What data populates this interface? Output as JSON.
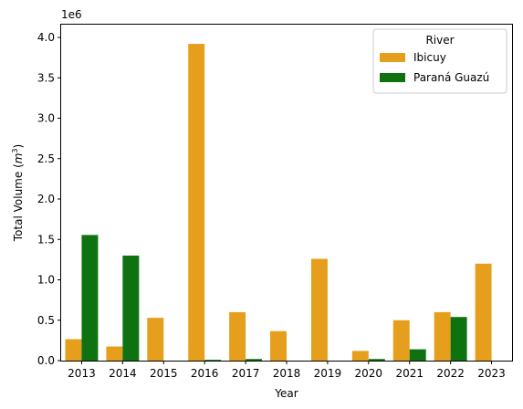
{
  "chart_data": {
    "type": "bar",
    "categories": [
      "2013",
      "2014",
      "2015",
      "2016",
      "2017",
      "2018",
      "2019",
      "2020",
      "2021",
      "2022",
      "2023"
    ],
    "series": [
      {
        "name": "Ibicuy",
        "color": "#e69f1d",
        "values": [
          265000,
          175000,
          530000,
          3920000,
          600000,
          365000,
          1260000,
          120000,
          500000,
          600000,
          1200000
        ]
      },
      {
        "name": "Paraná Guazú",
        "color": "#0e7210",
        "values": [
          1555000,
          1300000,
          0,
          10000,
          20000,
          0,
          0,
          20000,
          140000,
          540000,
          0
        ]
      }
    ],
    "xlabel": "Year",
    "ylabel_main": "Total Volume (",
    "ylabel_unit": "m",
    "ylabel_sup": "3",
    "ylabel_close": ")",
    "offset_text": "1e6",
    "yticks": [
      0,
      500000,
      1000000,
      1500000,
      2000000,
      2500000,
      3000000,
      3500000,
      4000000
    ],
    "ytick_labels": [
      "0.0",
      "0.5",
      "1.0",
      "1.5",
      "2.0",
      "2.5",
      "3.0",
      "3.5",
      "4.0"
    ],
    "ylim": [
      0,
      4000000
    ],
    "legend": {
      "title": "River",
      "position": "top-right"
    },
    "grid": false
  }
}
